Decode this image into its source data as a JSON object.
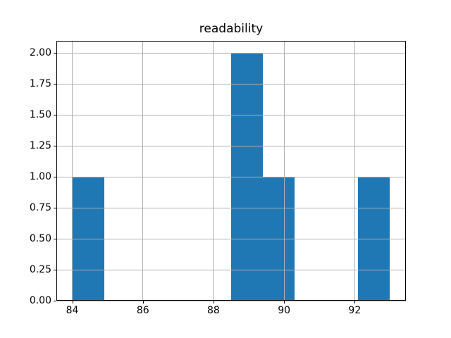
{
  "chart_data": {
    "type": "bar",
    "subtype": "histogram",
    "title": "readability",
    "bin_edges": [
      84.0,
      84.9,
      85.8,
      86.7,
      87.6,
      88.5,
      89.4,
      90.3,
      91.2,
      92.1,
      93.0
    ],
    "counts": [
      1,
      0,
      0,
      0,
      0,
      2,
      1,
      0,
      0,
      1
    ],
    "xlabel": "",
    "ylabel": "",
    "xlim": [
      83.55,
      93.45
    ],
    "ylim": [
      0,
      2.1
    ],
    "xticks": [
      {
        "value": 84,
        "label": "84"
      },
      {
        "value": 86,
        "label": "86"
      },
      {
        "value": 88,
        "label": "88"
      },
      {
        "value": 90,
        "label": "90"
      },
      {
        "value": 92,
        "label": "92"
      }
    ],
    "yticks": [
      {
        "value": 0.0,
        "label": "0.00"
      },
      {
        "value": 0.25,
        "label": "0.25"
      },
      {
        "value": 0.5,
        "label": "0.50"
      },
      {
        "value": 0.75,
        "label": "0.75"
      },
      {
        "value": 1.0,
        "label": "1.00"
      },
      {
        "value": 1.25,
        "label": "1.25"
      },
      {
        "value": 1.5,
        "label": "1.50"
      },
      {
        "value": 1.75,
        "label": "1.75"
      },
      {
        "value": 2.0,
        "label": "2.00"
      }
    ],
    "grid": true,
    "grid_above_bars": true,
    "legend": null,
    "colors": {
      "bar": "#1f77b4",
      "grid": "#b0b0b0",
      "spine": "#000000",
      "background": "#ffffff",
      "text": "#000000"
    }
  }
}
